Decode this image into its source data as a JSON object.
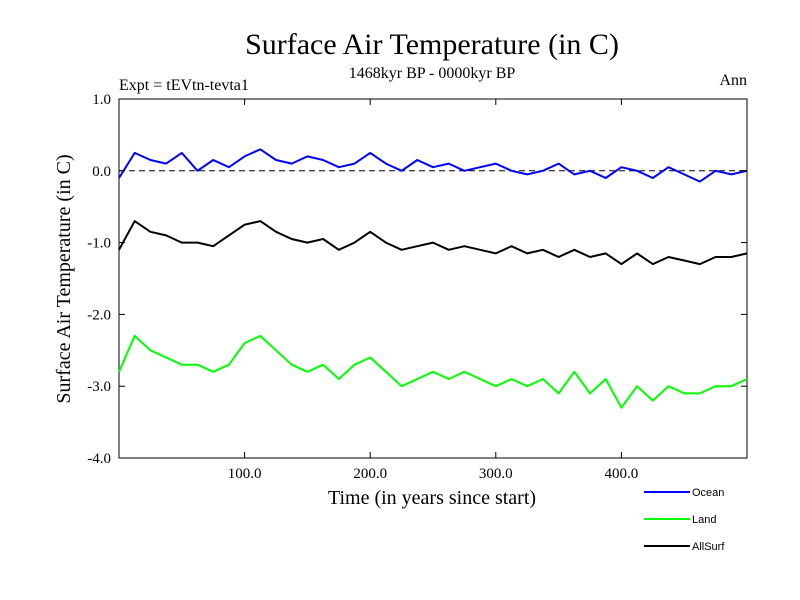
{
  "chart_data": {
    "type": "line",
    "title": "Surface Air Temperature (in C)",
    "subtitle": "1468kyr BP - 0000kyr BP",
    "expt_label": "Expt = tEVtn-tevta1",
    "season_label": "Ann",
    "xlabel": "Time (in years since start)",
    "ylabel": "Surface Air Temperature (in C)",
    "xlim": [
      0,
      500
    ],
    "ylim": [
      -4.0,
      1.0
    ],
    "x_ticks": [
      100,
      200,
      300,
      400
    ],
    "x_tick_labels": [
      "100.0",
      "200.0",
      "300.0",
      "400.0"
    ],
    "y_ticks": [
      1.0,
      0.0,
      -1.0,
      -2.0,
      -3.0,
      -4.0
    ],
    "y_tick_labels": [
      "1.0",
      "0.0",
      "-1.0",
      "-2.0",
      "-3.0",
      "-4.0"
    ],
    "reference_line": 0.0,
    "legend_position": "bottom-right",
    "x": [
      0,
      12.5,
      25,
      37.5,
      50,
      62.5,
      75,
      87.5,
      100,
      112.5,
      125,
      137.5,
      150,
      162.5,
      175,
      187.5,
      200,
      212.5,
      225,
      237.5,
      250,
      262.5,
      275,
      287.5,
      300,
      312.5,
      325,
      337.5,
      350,
      362.5,
      375,
      387.5,
      400,
      412.5,
      425,
      437.5,
      450,
      462.5,
      475,
      487.5,
      500
    ],
    "series": [
      {
        "name": "Ocean",
        "color": "#0000ff",
        "values": [
          -0.1,
          0.25,
          0.15,
          0.1,
          0.25,
          0.0,
          0.15,
          0.05,
          0.2,
          0.3,
          0.15,
          0.1,
          0.2,
          0.15,
          0.05,
          0.1,
          0.25,
          0.1,
          0.0,
          0.15,
          0.05,
          0.1,
          0.0,
          0.05,
          0.1,
          0.0,
          -0.05,
          0.0,
          0.1,
          -0.05,
          0.0,
          -0.1,
          0.05,
          0.0,
          -0.1,
          0.05,
          -0.05,
          -0.15,
          0.0,
          -0.05,
          0.0
        ]
      },
      {
        "name": "Land",
        "color": "#00ff00",
        "values": [
          -2.8,
          -2.3,
          -2.5,
          -2.6,
          -2.7,
          -2.7,
          -2.8,
          -2.7,
          -2.4,
          -2.3,
          -2.5,
          -2.7,
          -2.8,
          -2.7,
          -2.9,
          -2.7,
          -2.6,
          -2.8,
          -3.0,
          -2.9,
          -2.8,
          -2.9,
          -2.8,
          -2.9,
          -3.0,
          -2.9,
          -3.0,
          -2.9,
          -3.1,
          -2.8,
          -3.1,
          -2.9,
          -3.3,
          -3.0,
          -3.2,
          -3.0,
          -3.1,
          -3.1,
          -3.0,
          -3.0,
          -2.9
        ]
      },
      {
        "name": "AllSurf",
        "color": "#000000",
        "values": [
          -1.1,
          -0.7,
          -0.85,
          -0.9,
          -1.0,
          -1.0,
          -1.05,
          -0.9,
          -0.75,
          -0.7,
          -0.85,
          -0.95,
          -1.0,
          -0.95,
          -1.1,
          -1.0,
          -0.85,
          -1.0,
          -1.1,
          -1.05,
          -1.0,
          -1.1,
          -1.05,
          -1.1,
          -1.15,
          -1.05,
          -1.15,
          -1.1,
          -1.2,
          -1.1,
          -1.2,
          -1.15,
          -1.3,
          -1.15,
          -1.3,
          -1.2,
          -1.25,
          -1.3,
          -1.2,
          -1.2,
          -1.15
        ]
      }
    ]
  }
}
